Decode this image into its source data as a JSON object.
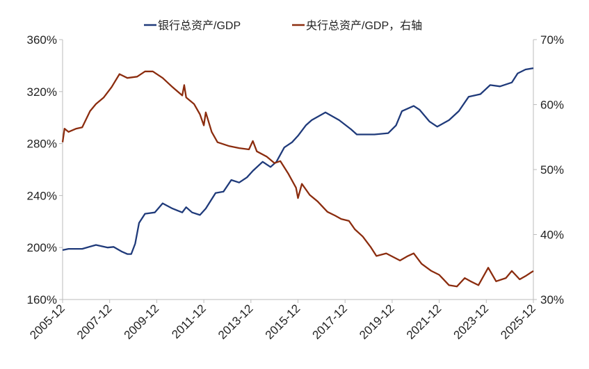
{
  "chart_data": {
    "type": "line",
    "title": "",
    "legend_position": "top",
    "grid": false,
    "x_tick_labels": [
      "2005-12",
      "2007-12",
      "2009-12",
      "2011-12",
      "2013-12",
      "2015-12",
      "2017-12",
      "2019-12",
      "2021-12",
      "2023-12",
      "2025-12"
    ],
    "xlim": [
      "2005-12",
      "2025-12"
    ],
    "y_left": {
      "ylim": [
        160,
        360
      ],
      "tick_labels": [
        "160%",
        "200%",
        "240%",
        "280%",
        "320%",
        "360%"
      ],
      "ticks": [
        160,
        200,
        240,
        280,
        320,
        360
      ]
    },
    "y_right": {
      "ylim": [
        30,
        70
      ],
      "tick_labels": [
        "30%",
        "40%",
        "50%",
        "60%",
        "70%"
      ],
      "ticks": [
        30,
        40,
        50,
        60,
        70
      ]
    },
    "series": [
      {
        "name": "银行总资产/GDP",
        "axis": "left",
        "color": "#1f3a7a",
        "x": [
          "2005-12",
          "2006-03",
          "2006-10",
          "2007-05",
          "2007-11",
          "2008-02",
          "2008-06",
          "2008-09",
          "2008-11",
          "2009-01",
          "2009-03",
          "2009-06",
          "2009-11",
          "2010-03",
          "2010-08",
          "2011-01",
          "2011-03",
          "2011-06",
          "2011-10",
          "2012-01",
          "2012-06",
          "2012-10",
          "2013-02",
          "2013-06",
          "2013-10",
          "2014-01",
          "2014-06",
          "2014-10",
          "2015-01",
          "2015-05",
          "2015-09",
          "2015-12",
          "2016-04",
          "2016-07",
          "2017-02",
          "2017-09",
          "2018-03",
          "2018-06",
          "2019-03",
          "2019-10",
          "2020-02",
          "2020-05",
          "2020-11",
          "2021-02",
          "2021-07",
          "2021-11",
          "2022-05",
          "2022-10",
          "2023-03",
          "2023-09",
          "2024-02",
          "2024-07",
          "2025-01",
          "2025-04",
          "2025-08",
          "2025-12"
        ],
        "values": [
          198,
          199,
          199,
          202,
          200,
          200.5,
          197,
          195,
          195,
          203,
          219,
          226,
          227,
          234,
          230,
          227,
          231,
          227,
          225,
          230,
          242,
          243,
          252,
          250,
          254,
          259,
          266,
          262,
          266,
          277,
          281,
          286,
          294,
          298,
          304,
          298,
          291,
          287,
          287,
          288,
          294,
          305,
          309,
          306,
          297,
          293,
          298,
          305,
          316,
          318,
          325,
          324,
          327,
          334,
          337,
          338
        ]
      },
      {
        "name": "央行总资产/GDP，右轴",
        "axis": "right",
        "color": "#8b2c0e",
        "x": [
          "2005-12",
          "2006-01",
          "2006-03",
          "2006-07",
          "2006-10",
          "2007-02",
          "2007-05",
          "2007-09",
          "2008-01",
          "2008-05",
          "2008-09",
          "2009-02",
          "2009-06",
          "2009-10",
          "2010-03",
          "2010-08",
          "2011-01",
          "2011-02",
          "2011-03",
          "2011-07",
          "2011-10",
          "2011-12",
          "2012-01",
          "2012-04",
          "2012-07",
          "2013-01",
          "2013-06",
          "2013-11",
          "2014-01",
          "2014-03",
          "2014-08",
          "2014-12",
          "2015-03",
          "2015-07",
          "2015-11",
          "2015-12",
          "2016-02",
          "2016-06",
          "2016-10",
          "2017-03",
          "2017-07",
          "2017-10",
          "2018-02",
          "2018-05",
          "2018-09",
          "2019-01",
          "2019-04",
          "2019-09",
          "2020-04",
          "2020-08",
          "2020-11",
          "2021-03",
          "2021-08",
          "2021-12",
          "2022-05",
          "2022-09",
          "2023-01",
          "2023-04",
          "2023-08",
          "2024-01",
          "2024-05",
          "2024-10",
          "2025-01",
          "2025-05",
          "2025-08",
          "2025-12"
        ],
        "values": [
          54.2,
          56.3,
          55.8,
          56.3,
          56.5,
          59.0,
          60.1,
          61.1,
          62.7,
          64.7,
          64.1,
          64.3,
          65.1,
          65.1,
          64.1,
          62.7,
          61.4,
          63.0,
          61.1,
          60.1,
          58.5,
          56.8,
          58.8,
          55.8,
          54.2,
          53.6,
          53.3,
          53.1,
          54.4,
          52.8,
          52.0,
          51.0,
          51.3,
          49.4,
          47.2,
          45.6,
          47.8,
          46.1,
          45.1,
          43.5,
          42.9,
          42.4,
          42.1,
          40.8,
          39.7,
          38.1,
          36.7,
          37.1,
          36.0,
          36.7,
          37.1,
          35.5,
          34.4,
          33.8,
          32.2,
          32.0,
          33.3,
          32.8,
          32.2,
          34.9,
          32.8,
          33.3,
          34.4,
          33.1,
          33.6,
          34.4
        ]
      }
    ]
  }
}
